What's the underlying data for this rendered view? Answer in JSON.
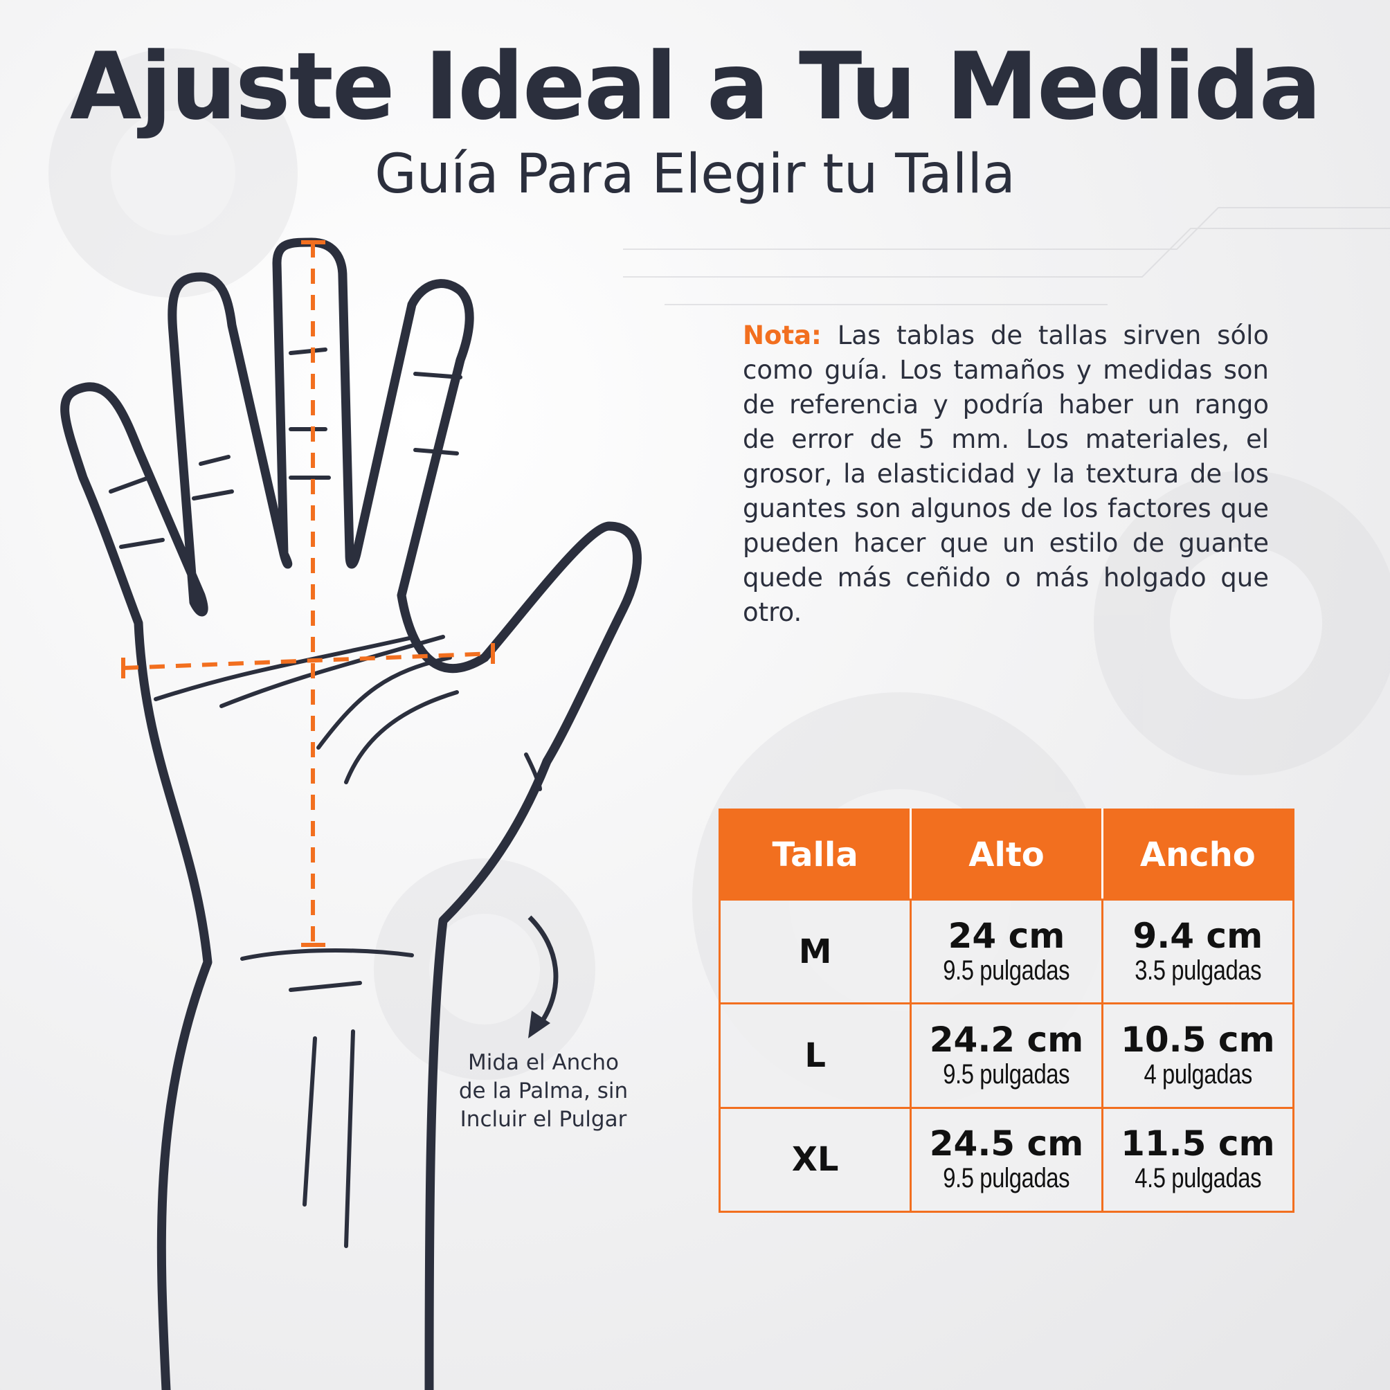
{
  "colors": {
    "accent": "#f26f1f",
    "ink": "#2b2f3d"
  },
  "title": "Ajuste Ideal a Tu Medida",
  "subtitle": "Guía Para Elegir tu Talla",
  "note": {
    "label": "Nota:",
    "text": "Las tablas de tallas sirven sólo como guía. Los tamaños y medidas son de referencia y podría haber un rango de error de 5 mm. Los materiales, el grosor, la elasticidad y la textura de los guantes son algunos de los factores que pueden hacer que un estilo de guante quede más ceñido o más holgado que otro."
  },
  "annotation": {
    "line1": "Mida  el Ancho",
    "line2": "de la Palma, sin",
    "line3": "Incluir el Pulgar"
  },
  "table": {
    "headers": [
      "Talla",
      "Alto",
      "Ancho"
    ],
    "rows": [
      {
        "size": "M",
        "alto_cm": "24 cm",
        "alto_in": "9.5 pulgadas",
        "ancho_cm": "9.4 cm",
        "ancho_in": "3.5 pulgadas"
      },
      {
        "size": "L",
        "alto_cm": "24.2 cm",
        "alto_in": "9.5 pulgadas",
        "ancho_cm": "10.5 cm",
        "ancho_in": "4 pulgadas"
      },
      {
        "size": "XL",
        "alto_cm": "24.5 cm",
        "alto_in": "9.5 pulgadas",
        "ancho_cm": "11.5 cm",
        "ancho_in": "4.5 pulgadas"
      }
    ]
  },
  "icons": [
    "hand-outline-illustration",
    "curved-arrow-icon",
    "gear-background-pattern"
  ]
}
